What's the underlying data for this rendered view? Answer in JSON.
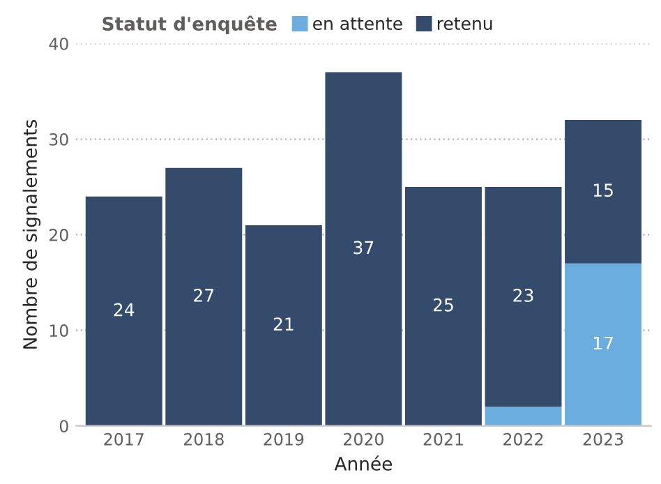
{
  "chart_data": {
    "type": "bar",
    "stacked": true,
    "xlabel": "Année",
    "ylabel": "Nombre de signalements",
    "legend_title": "Statut d'enquête",
    "legend": "top",
    "categories": [
      "2017",
      "2018",
      "2019",
      "2020",
      "2021",
      "2022",
      "2023"
    ],
    "series": [
      {
        "name": "en attente",
        "color": "#6cade0",
        "values": [
          0,
          0,
          0,
          0,
          0,
          2,
          17
        ],
        "value_labels": [
          null,
          null,
          null,
          null,
          null,
          null,
          "17"
        ]
      },
      {
        "name": "retenu",
        "color": "#344b6c",
        "values": [
          24,
          27,
          21,
          37,
          25,
          23,
          15
        ],
        "value_labels": [
          "24",
          "27",
          "21",
          "37",
          "25",
          "23",
          "15"
        ]
      }
    ],
    "ylim": [
      0,
      40
    ],
    "yticks": [
      0,
      10,
      20,
      30,
      40
    ],
    "grid": "y"
  }
}
